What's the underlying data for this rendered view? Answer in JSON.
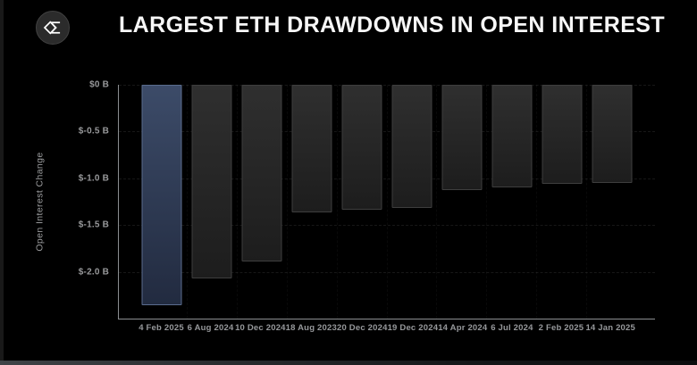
{
  "header": {
    "title": "LARGEST ETH DRAWDOWNS IN OPEN INTEREST",
    "logo_icon": "sigma-diamond-logo"
  },
  "chart_data": {
    "type": "bar",
    "title": "LARGEST ETH DRAWDOWNS IN OPEN INTEREST",
    "xlabel": "",
    "ylabel": "Open Interest Change",
    "unit": "$ billions",
    "ylim": [
      -2.5,
      0
    ],
    "y_ticks": [
      "$0 B",
      "$-0.5 B",
      "$-1.0 B",
      "$-1.5 B",
      "$-2.0 B"
    ],
    "y_tick_values": [
      0,
      -0.5,
      -1.0,
      -1.5,
      -2.0
    ],
    "grid": "horizontal dashed",
    "legend": "none",
    "categories": [
      "4 Feb 2025",
      "6 Aug 2024",
      "10 Dec 2024",
      "18 Aug 2023",
      "20 Dec 2024",
      "19 Dec 2024",
      "14 Apr 2024",
      "6 Jul 2024",
      "2 Feb 2025",
      "14 Jan 2025"
    ],
    "values": [
      -2.36,
      -2.07,
      -1.89,
      -1.36,
      -1.34,
      -1.32,
      -1.13,
      -1.1,
      -1.06,
      -1.05
    ],
    "highlight_index": 0,
    "colors": {
      "highlight_bar": "#3b4a66",
      "highlight_border": "#5b6d8e",
      "default_bar": "#262626",
      "default_border": "#3e3e3e",
      "background": "#000000",
      "axis_line": "#8b8e91",
      "axis_text": "#98999b",
      "title_text": "#f7f7f7"
    }
  }
}
